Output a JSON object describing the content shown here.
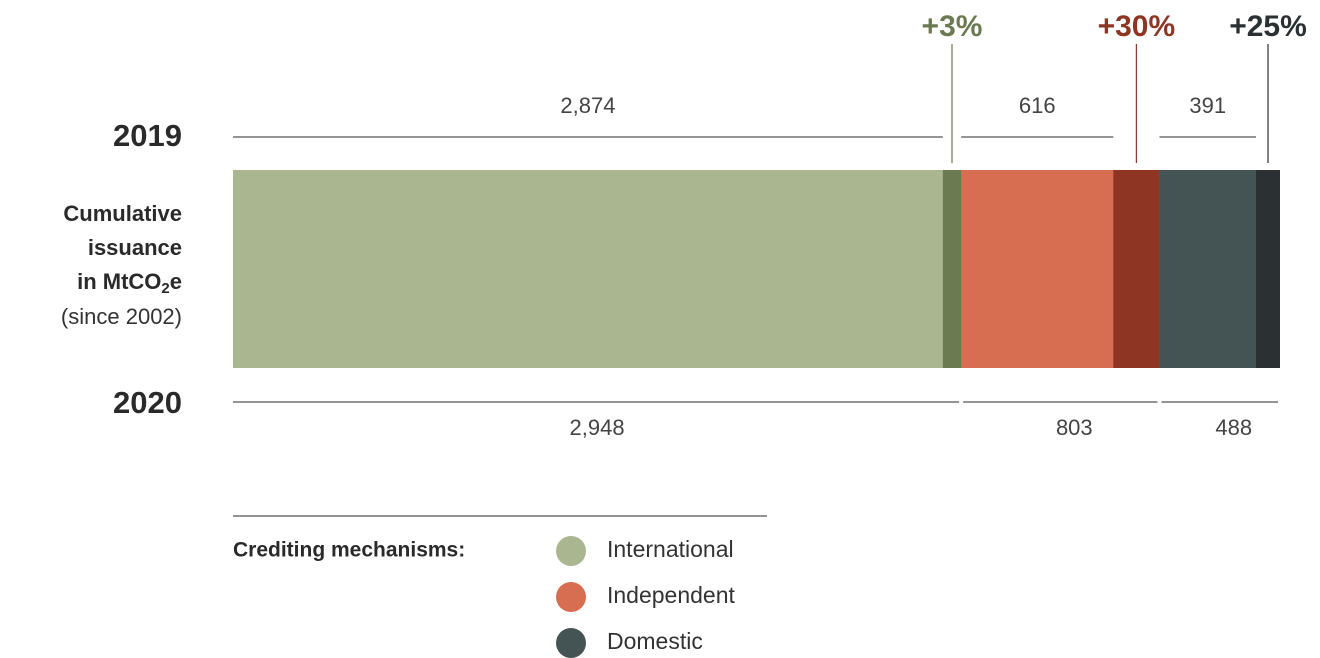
{
  "chart_data": {
    "type": "bar",
    "orientation": "horizontal",
    "stacked": true,
    "categories": [
      "2019",
      "2020"
    ],
    "ylabel": {
      "lines": [
        "Cumulative",
        "issuance",
        "in MtCO"
      ],
      "subscript": "2",
      "suffix": "e",
      "note": "(since 2002)"
    },
    "legend_title": "Crediting mechanisms:",
    "series": [
      {
        "name": "International",
        "color": "#aab690",
        "change_color": "#6b7a50",
        "values": [
          2874,
          2948
        ],
        "value_labels": [
          "2,874",
          "2,948"
        ],
        "change_label": "+3%"
      },
      {
        "name": "Independent",
        "color": "#d76e52",
        "change_color": "#8f3524",
        "values": [
          616,
          803
        ],
        "value_labels": [
          "616",
          "803"
        ],
        "change_label": "+30%"
      },
      {
        "name": "Domestic",
        "color": "#445454",
        "change_color": "#2b3033",
        "values": [
          391,
          488
        ],
        "value_labels": [
          "391",
          "488"
        ],
        "change_label": "+25%"
      }
    ]
  }
}
